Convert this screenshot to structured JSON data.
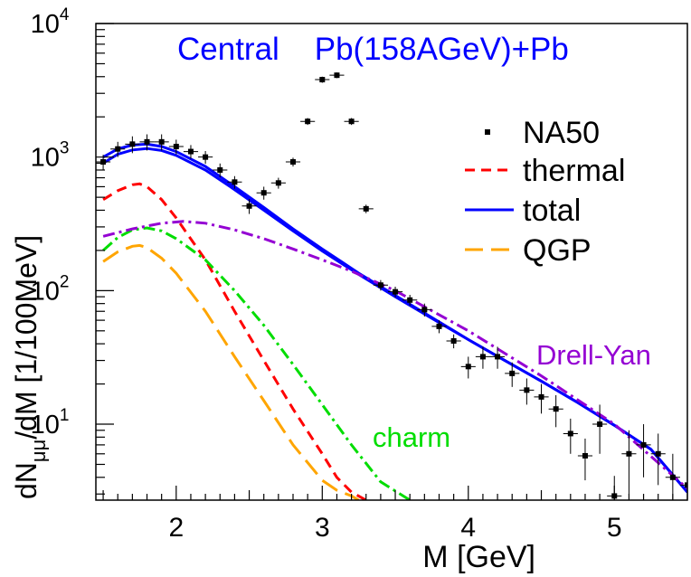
{
  "chart_data": {
    "type": "line",
    "title": "Central    Pb(158AGeV)+Pb",
    "xlabel": "M [GeV]",
    "ylabel_main": "dN",
    "ylabel_sub": "μμ",
    "ylabel_rest": "/dM [1/100MeV]",
    "x_range": [
      1.45,
      5.5
    ],
    "y_range": [
      2.7,
      10000
    ],
    "y_scale": "log",
    "x_ticks": [
      {
        "v": 2,
        "label": "2"
      },
      {
        "v": 3,
        "label": "3"
      },
      {
        "v": 4,
        "label": "4"
      },
      {
        "v": 5,
        "label": "5"
      }
    ],
    "y_ticks": [
      {
        "v": 10,
        "base": "10",
        "exp": "1"
      },
      {
        "v": 100,
        "base": "10",
        "exp": "2"
      },
      {
        "v": 1000,
        "base": "10",
        "exp": "3"
      },
      {
        "v": 10000,
        "base": "10",
        "exp": "4"
      }
    ],
    "legend": {
      "position": "top-right",
      "entries": [
        {
          "label": "NA50",
          "style": "marker",
          "color": "#000000"
        },
        {
          "label": "thermal",
          "style": "dash",
          "color": "#ff0000"
        },
        {
          "label": "total",
          "style": "solid",
          "color": "#0000ff"
        },
        {
          "label": "QGP",
          "style": "longdash",
          "color": "#ffa500"
        }
      ]
    },
    "annotations": [
      {
        "text": "Drell-Yan",
        "color": "#9400d3",
        "x": 4.8,
        "y": 30
      },
      {
        "text": "charm",
        "color": "#00dd00",
        "x": 3.75,
        "y": 6.5
      }
    ],
    "series": [
      {
        "name": "NA50",
        "style": "points",
        "color": "#000000",
        "x": [
          1.5,
          1.6,
          1.7,
          1.8,
          1.9,
          2.0,
          2.1,
          2.2,
          2.3,
          2.4,
          2.5,
          2.6,
          2.7,
          2.8,
          2.9,
          3.0,
          3.1,
          3.2,
          3.3,
          3.4,
          3.5,
          3.6,
          3.7,
          3.8,
          3.9,
          4.0,
          4.1,
          4.2,
          4.3,
          4.4,
          4.5,
          4.6,
          4.7,
          4.8,
          4.9,
          5.0,
          5.1,
          5.2,
          5.3,
          5.4,
          5.5
        ],
        "y": [
          920,
          1150,
          1250,
          1300,
          1300,
          1200,
          1100,
          1000,
          800,
          650,
          430,
          540,
          640,
          920,
          1850,
          3800,
          4100,
          1850,
          410,
          110,
          98,
          85,
          72,
          54,
          42,
          27,
          32,
          32,
          24,
          18,
          16,
          13,
          8.5,
          5.8,
          10,
          2.9,
          6,
          7,
          6,
          4,
          3.5
        ],
        "err": [
          120,
          150,
          180,
          180,
          180,
          150,
          130,
          110,
          95,
          70,
          55,
          60,
          60,
          70,
          110,
          200,
          200,
          110,
          30,
          10,
          9,
          8,
          8,
          6,
          5,
          5,
          6,
          6,
          5,
          4,
          4,
          3.5,
          2.5,
          2,
          4,
          1.2,
          3,
          3,
          2.5,
          2,
          2
        ]
      },
      {
        "name": "total",
        "style": "solid",
        "color": "#0000ff",
        "x": [
          1.5,
          1.6,
          1.7,
          1.8,
          1.9,
          2.0,
          2.2,
          2.4,
          2.6,
          2.8,
          3.0,
          3.25,
          3.5,
          3.75,
          4.0,
          4.25,
          4.5,
          4.75,
          5.0,
          5.25,
          5.5
        ],
        "y": [
          1000,
          1150,
          1230,
          1250,
          1200,
          1100,
          850,
          600,
          420,
          290,
          205,
          135,
          92,
          63,
          43,
          30,
          21,
          14.5,
          9.8,
          6.5,
          3.1
        ]
      },
      {
        "name": "total",
        "style": "solid",
        "color": "#0000ff",
        "x": [
          1.5,
          1.6,
          1.7,
          1.8,
          1.9,
          2.0,
          2.2,
          2.4,
          2.6,
          2.8,
          3.0,
          3.25,
          3.5,
          3.75,
          4.0,
          4.25,
          4.5,
          4.75,
          5.0,
          5.25,
          5.5
        ],
        "y": [
          900,
          1050,
          1130,
          1160,
          1120,
          1030,
          800,
          570,
          400,
          280,
          198,
          132,
          90,
          62,
          43,
          30,
          21,
          14.5,
          9.8,
          6.5,
          3.1
        ]
      },
      {
        "name": "thermal",
        "style": "dash",
        "color": "#ff0000",
        "x": [
          1.5,
          1.6,
          1.7,
          1.75,
          1.8,
          1.9,
          2.0,
          2.2,
          2.4,
          2.6,
          2.8,
          3.0,
          3.1,
          3.2,
          3.3
        ],
        "y": [
          480,
          560,
          620,
          630,
          600,
          480,
          350,
          170,
          70,
          30,
          13,
          6,
          4,
          3.1,
          2.7
        ]
      },
      {
        "name": "QGP",
        "style": "longdash",
        "color": "#ffa500",
        "x": [
          1.5,
          1.6,
          1.7,
          1.75,
          1.8,
          1.9,
          2.0,
          2.2,
          2.4,
          2.6,
          2.8,
          3.0,
          3.1,
          3.2,
          3.25
        ],
        "y": [
          165,
          195,
          215,
          218,
          210,
          175,
          135,
          70,
          32,
          15,
          7,
          3.8,
          3.2,
          2.9,
          2.7
        ]
      },
      {
        "name": "charm",
        "style": "dashdot",
        "color": "#00dd00",
        "x": [
          1.5,
          1.6,
          1.7,
          1.8,
          1.9,
          2.0,
          2.2,
          2.4,
          2.6,
          2.8,
          3.0,
          3.2,
          3.4,
          3.6
        ],
        "y": [
          200,
          250,
          285,
          295,
          280,
          245,
          170,
          100,
          55,
          28,
          14,
          7,
          3.7,
          2.7
        ]
      },
      {
        "name": "Drell-Yan",
        "style": "dashdot",
        "color": "#9400d3",
        "x": [
          1.5,
          1.7,
          1.9,
          2.05,
          2.2,
          2.4,
          2.6,
          2.8,
          3.0,
          3.2,
          3.5,
          4.0,
          4.5,
          5.0,
          5.5
        ],
        "y": [
          255,
          290,
          320,
          330,
          320,
          285,
          245,
          205,
          170,
          140,
          100,
          50,
          23,
          10,
          3.3
        ]
      }
    ]
  }
}
